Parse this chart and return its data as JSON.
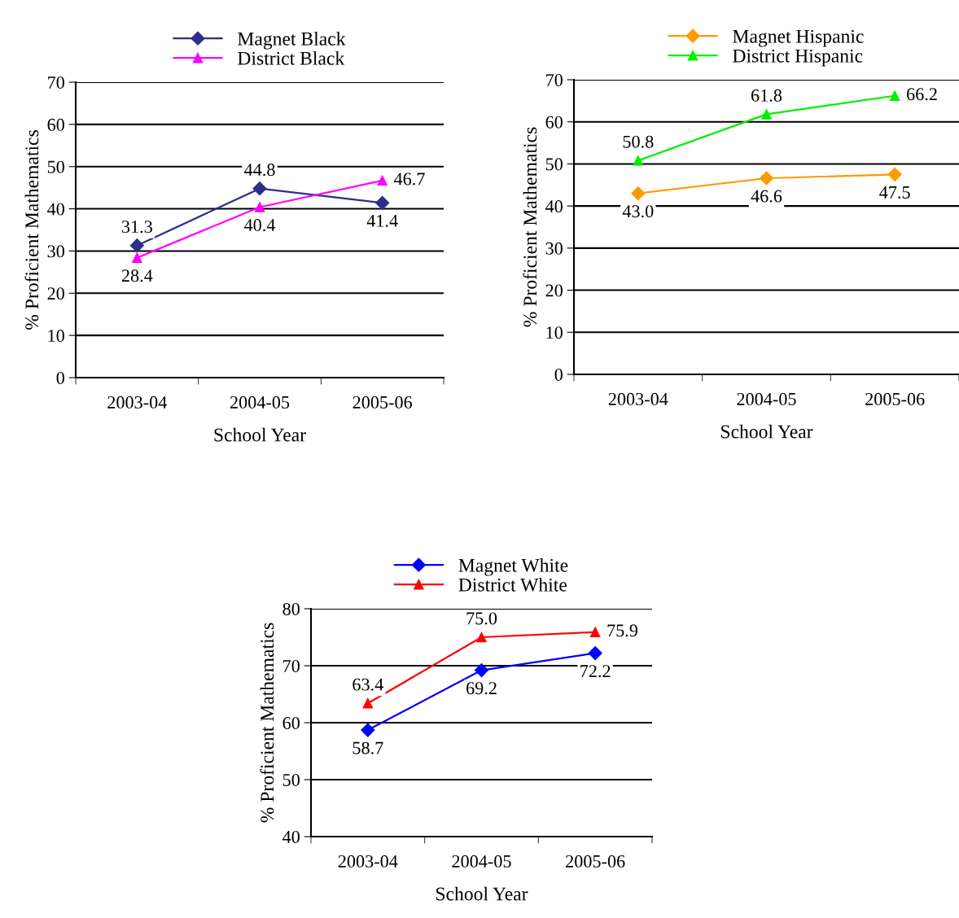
{
  "chart_data": [
    {
      "type": "line",
      "xlabel": "School Year",
      "ylabel": "% Proficient Mathematics",
      "categories": [
        "2003-04",
        "2004-05",
        "2005-06"
      ],
      "ylim": [
        0,
        70
      ],
      "yticks": [
        0,
        10,
        20,
        30,
        40,
        50,
        60,
        70
      ],
      "grid": "y",
      "legend": "top",
      "series": [
        {
          "name": "Magnet Black",
          "color": "#2e2e8a",
          "marker": "diamond",
          "values": [
            31.3,
            44.8,
            41.4
          ],
          "value_labels": [
            "31.3",
            "44.8",
            "41.4"
          ]
        },
        {
          "name": "District Black",
          "color": "#ff00ff",
          "marker": "triangle",
          "values": [
            28.4,
            40.4,
            46.7
          ],
          "value_labels": [
            "28.4",
            "40.4",
            "46.7"
          ]
        }
      ]
    },
    {
      "type": "line",
      "xlabel": "School Year",
      "ylabel": "% Proficient Mathematics",
      "categories": [
        "2003-04",
        "2004-05",
        "2005-06"
      ],
      "ylim": [
        0,
        70
      ],
      "yticks": [
        0,
        10,
        20,
        30,
        40,
        50,
        60,
        70
      ],
      "grid": "y",
      "legend": "top",
      "series": [
        {
          "name": "Magnet Hispanic",
          "color": "#ff9900",
          "marker": "diamond",
          "values": [
            43.0,
            46.6,
            47.5
          ],
          "value_labels": [
            "43.0",
            "46.6",
            "47.5"
          ]
        },
        {
          "name": "District Hispanic",
          "color": "#00ee00",
          "marker": "triangle",
          "values": [
            50.8,
            61.8,
            66.2
          ],
          "value_labels": [
            "50.8",
            "61.8",
            "66.2"
          ]
        }
      ]
    },
    {
      "type": "line",
      "xlabel": "School Year",
      "ylabel": "% Proficient Mathematics",
      "categories": [
        "2003-04",
        "2004-05",
        "2005-06"
      ],
      "ylim": [
        40,
        80
      ],
      "yticks": [
        40,
        50,
        60,
        70,
        80
      ],
      "grid": "y",
      "legend": "top",
      "series": [
        {
          "name": "Magnet White",
          "color": "#0000ff",
          "marker": "diamond",
          "values": [
            58.7,
            69.2,
            72.2
          ],
          "value_labels": [
            "58.7",
            "69.2",
            "72.2"
          ]
        },
        {
          "name": "District White",
          "color": "#ff0000",
          "marker": "triangle",
          "values": [
            63.4,
            75.0,
            75.9
          ],
          "value_labels": [
            "63.4",
            "75.0",
            "75.9"
          ]
        }
      ]
    }
  ]
}
